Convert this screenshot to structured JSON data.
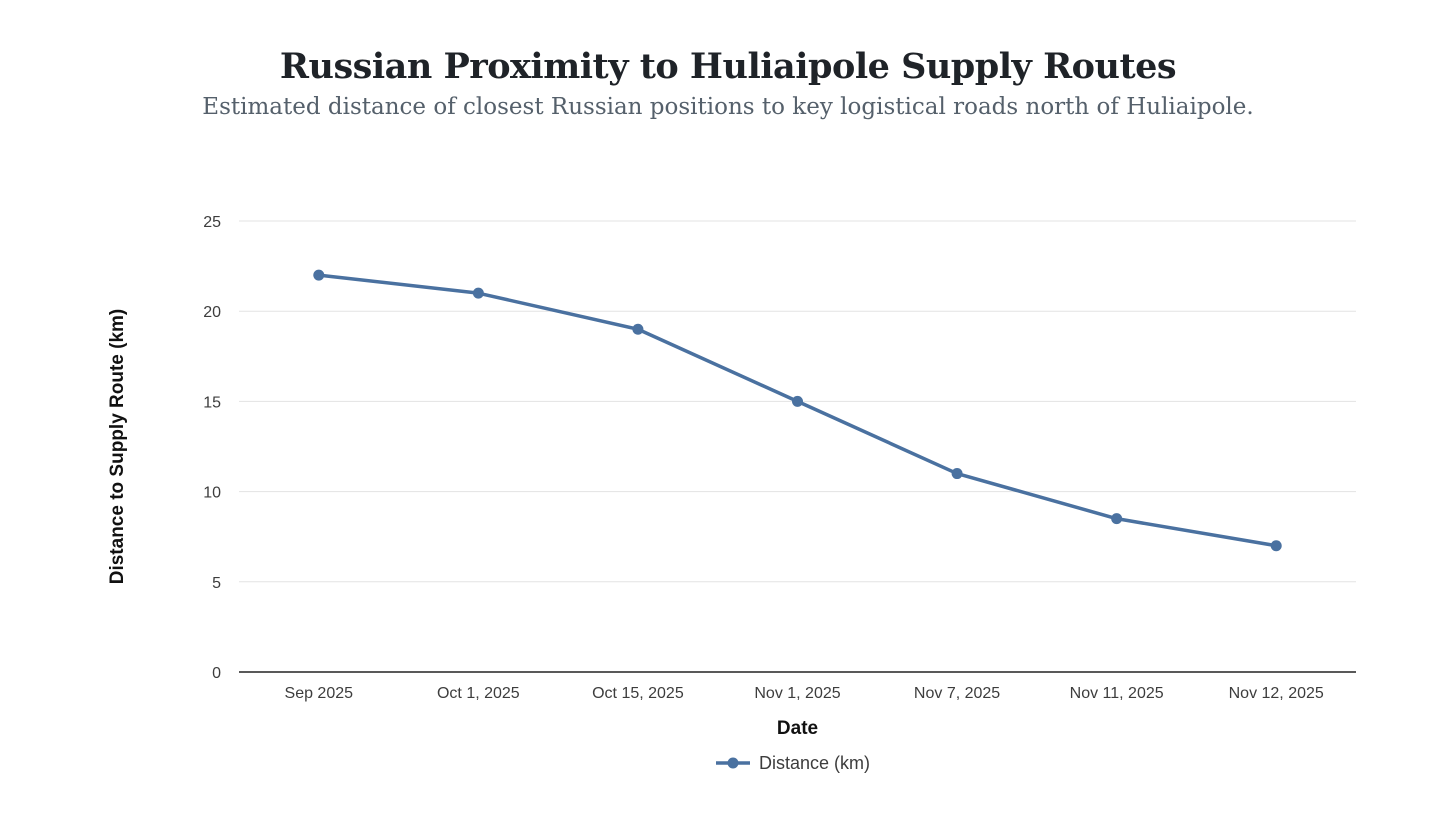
{
  "chart_data": {
    "type": "line",
    "title": "Russian Proximity to Huliaipole Supply Routes",
    "subtitle": "Estimated distance of closest Russian positions to key logistical roads north of Huliaipole.",
    "xlabel": "Date",
    "ylabel": "Distance to Supply Route (km)",
    "categories": [
      "Sep 2025",
      "Oct 1, 2025",
      "Oct 15, 2025",
      "Nov 1, 2025",
      "Nov 7, 2025",
      "Nov 11, 2025",
      "Nov 12, 2025"
    ],
    "series": [
      {
        "name": "Distance (km)",
        "values": [
          22,
          21,
          19,
          15,
          11,
          8.5,
          7
        ],
        "color": "#4a71a0"
      }
    ],
    "ylim": [
      0,
      25
    ],
    "yticks": [
      0,
      5,
      10,
      15,
      20,
      25
    ],
    "grid": true,
    "legend": "bottom-center"
  }
}
